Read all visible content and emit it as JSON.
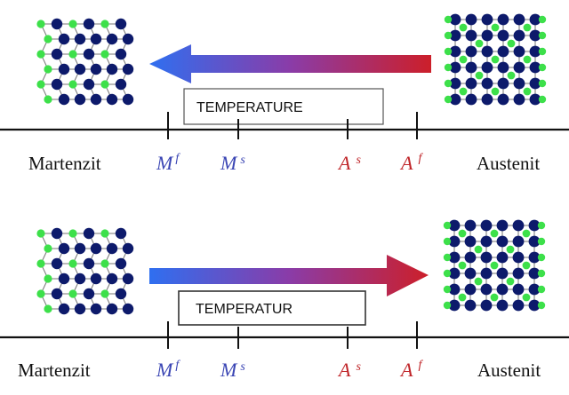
{
  "colors": {
    "lattice_dark": "#0d1a6b",
    "lattice_light": "#3de04a",
    "martensite_temp_color": "#3b46b4",
    "austenite_temp_color": "#c0262a",
    "arrow_blue": "#2f6ff0",
    "arrow_red": "#cc1f2a",
    "axis_line": "#111111"
  },
  "panels": [
    {
      "name": "cooling",
      "arrow_direction": "left",
      "box_label": "TEMPERATURE",
      "phase_left": "Martenzit",
      "phase_right": "Austenit",
      "temperatures": [
        {
          "base": "M",
          "sup": "f"
        },
        {
          "base": "M",
          "sup": "s"
        },
        {
          "base": "A",
          "sup": "s"
        },
        {
          "base": "A",
          "sup": "f"
        }
      ]
    },
    {
      "name": "heating",
      "arrow_direction": "right",
      "box_label": "TEMPERATUR",
      "phase_left": "Martenzit",
      "phase_right": "Austenit",
      "temperatures": [
        {
          "base": "M",
          "sup": "f"
        },
        {
          "base": "M",
          "sup": "s"
        },
        {
          "base": "A",
          "sup": "s"
        },
        {
          "base": "A",
          "sup": "f"
        }
      ]
    }
  ]
}
